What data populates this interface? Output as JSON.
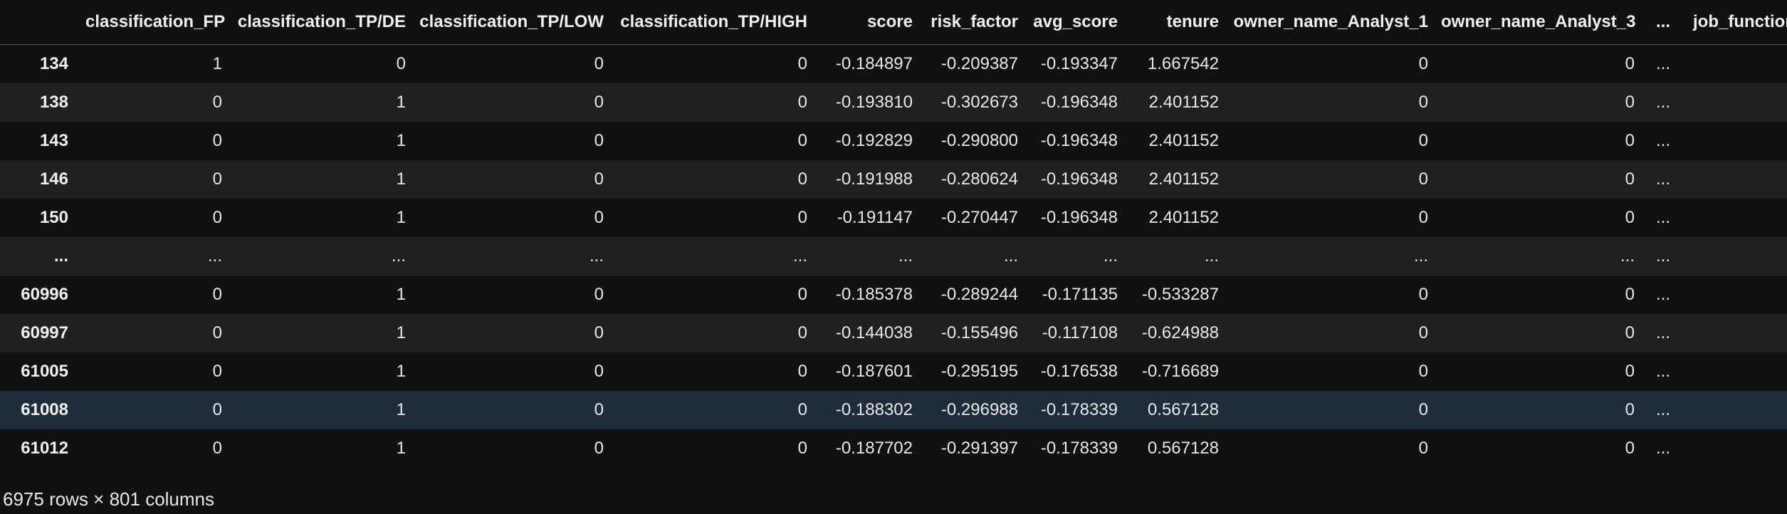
{
  "dataframe": {
    "columns": [
      "",
      "classification_FP",
      "classification_TP/DE",
      "classification_TP/LOW",
      "classification_TP/HIGH",
      "score",
      "risk_factor",
      "avg_score",
      "tenure",
      "owner_name_Analyst_1",
      "owner_name_Analyst_3",
      "...",
      "job_function_"
    ],
    "rows": [
      {
        "index": "134",
        "cells": [
          "1",
          "0",
          "0",
          "0",
          "-0.184897",
          "-0.209387",
          "-0.193347",
          "1.667542",
          "0",
          "0",
          "...",
          ""
        ]
      },
      {
        "index": "138",
        "cells": [
          "0",
          "1",
          "0",
          "0",
          "-0.193810",
          "-0.302673",
          "-0.196348",
          "2.401152",
          "0",
          "0",
          "...",
          ""
        ]
      },
      {
        "index": "143",
        "cells": [
          "0",
          "1",
          "0",
          "0",
          "-0.192829",
          "-0.290800",
          "-0.196348",
          "2.401152",
          "0",
          "0",
          "...",
          ""
        ]
      },
      {
        "index": "146",
        "cells": [
          "0",
          "1",
          "0",
          "0",
          "-0.191988",
          "-0.280624",
          "-0.196348",
          "2.401152",
          "0",
          "0",
          "...",
          ""
        ]
      },
      {
        "index": "150",
        "cells": [
          "0",
          "1",
          "0",
          "0",
          "-0.191147",
          "-0.270447",
          "-0.196348",
          "2.401152",
          "0",
          "0",
          "...",
          ""
        ]
      },
      {
        "index": "...",
        "cells": [
          "...",
          "...",
          "...",
          "...",
          "...",
          "...",
          "...",
          "...",
          "...",
          "...",
          "...",
          ""
        ]
      },
      {
        "index": "60996",
        "cells": [
          "0",
          "1",
          "0",
          "0",
          "-0.185378",
          "-0.289244",
          "-0.171135",
          "-0.533287",
          "0",
          "0",
          "...",
          ""
        ]
      },
      {
        "index": "60997",
        "cells": [
          "0",
          "1",
          "0",
          "0",
          "-0.144038",
          "-0.155496",
          "-0.117108",
          "-0.624988",
          "0",
          "0",
          "...",
          ""
        ]
      },
      {
        "index": "61005",
        "cells": [
          "0",
          "1",
          "0",
          "0",
          "-0.187601",
          "-0.295195",
          "-0.176538",
          "-0.716689",
          "0",
          "0",
          "...",
          ""
        ]
      },
      {
        "index": "61008",
        "cells": [
          "0",
          "1",
          "0",
          "0",
          "-0.188302",
          "-0.296988",
          "-0.178339",
          "0.567128",
          "0",
          "0",
          "...",
          ""
        ]
      },
      {
        "index": "61012",
        "cells": [
          "0",
          "1",
          "0",
          "0",
          "-0.187702",
          "-0.291397",
          "-0.178339",
          "0.567128",
          "0",
          "0",
          "...",
          ""
        ]
      }
    ],
    "hover_row": 9,
    "shape_text": "6975 rows × 801 columns"
  }
}
